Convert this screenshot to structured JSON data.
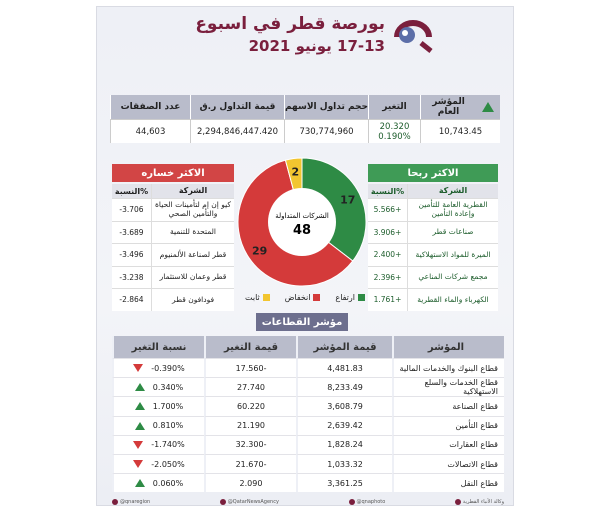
{
  "header": {
    "title": "بورصة قطر في اسبوع",
    "subtitle": "17-13 يونيو 2021"
  },
  "summary": {
    "headers": [
      "المؤشر العام",
      "التغير",
      "حجم تداول الاسهم",
      "قيمة التداول ر.ق",
      "عدد الصفقات"
    ],
    "values": {
      "index": "10,743.45",
      "change": "20.320",
      "change_pct": "0.190%",
      "volume": "730,774,960",
      "value": "2,294,846,447.420",
      "deals": "44,603"
    }
  },
  "gainers": {
    "title": "الاكثر ربحا",
    "col_company": "الشركة",
    "col_pct": "النسبة%",
    "rows": [
      {
        "name": "القطرية العامة للتأمين وإعادة التأمين",
        "pct": "5.566+"
      },
      {
        "name": "صناعات قطر",
        "pct": "3.906+"
      },
      {
        "name": "الميرة للمواد الاستهلاكية",
        "pct": "2.400+"
      },
      {
        "name": "مجمع شركات المناعي",
        "pct": "2.396+"
      },
      {
        "name": "الكهرباء والماء القطرية",
        "pct": "1.761+"
      }
    ]
  },
  "losers": {
    "title": "الاكثر خساره",
    "col_company": "الشركة",
    "col_pct": "النسبة%",
    "rows": [
      {
        "name": "كيو إن إم لتأمينات الحياة والتأمين الصحي",
        "pct": "-3.706"
      },
      {
        "name": "المتحدة للتنمية",
        "pct": "-3.689"
      },
      {
        "name": "قطر لصناعة الألمنيوم",
        "pct": "-3.496"
      },
      {
        "name": "قطر وعمان للاستثمار",
        "pct": "-3.238"
      },
      {
        "name": "فودافون قطر",
        "pct": "-2.864"
      }
    ]
  },
  "chart_data": {
    "type": "pie",
    "center_label": "الشركات المتداولة",
    "center_value": "48",
    "slices": [
      {
        "name": "ارتفاع",
        "value": 17,
        "color": "#2e8b45"
      },
      {
        "name": "انخفاض",
        "value": 29,
        "color": "#d43a3a"
      },
      {
        "name": "ثابت",
        "value": 2,
        "color": "#f2c530"
      }
    ]
  },
  "sectors": {
    "title": "مؤشر القطاعات",
    "headers": [
      "المؤشر",
      "قيمة المؤشر",
      "قيمة التغير",
      "نسبة التغير"
    ],
    "rows": [
      {
        "name": "قطاع البنوك والخدمات المالية",
        "value": "4,481.83",
        "change": "-17.560",
        "pct": "-0.390%",
        "dir": "down"
      },
      {
        "name": "قطاع الخدمات والسلع الاستهلاكية",
        "value": "8,233.49",
        "change": "27.740",
        "pct": "0.340%",
        "dir": "up"
      },
      {
        "name": "قطاع الصناعة",
        "value": "3,608.79",
        "change": "60.220",
        "pct": "1.700%",
        "dir": "up"
      },
      {
        "name": "قطاع التأمين",
        "value": "2,639.42",
        "change": "21.190",
        "pct": "0.810%",
        "dir": "up"
      },
      {
        "name": "قطاع العقارات",
        "value": "1,828.24",
        "change": "-32.300",
        "pct": "-1.740%",
        "dir": "down"
      },
      {
        "name": "قطاع الاتصالات",
        "value": "1,033.32",
        "change": "-21.670",
        "pct": "-2.050%",
        "dir": "down"
      },
      {
        "name": "قطاع النقل",
        "value": "3,361.25",
        "change": "2.090",
        "pct": "0.060%",
        "dir": "up"
      }
    ]
  },
  "footer": {
    "items": [
      "@qnaregion",
      "@QatarNewsAgency",
      "@qnaphoto",
      "وكالة الأنباء القطرية"
    ]
  }
}
